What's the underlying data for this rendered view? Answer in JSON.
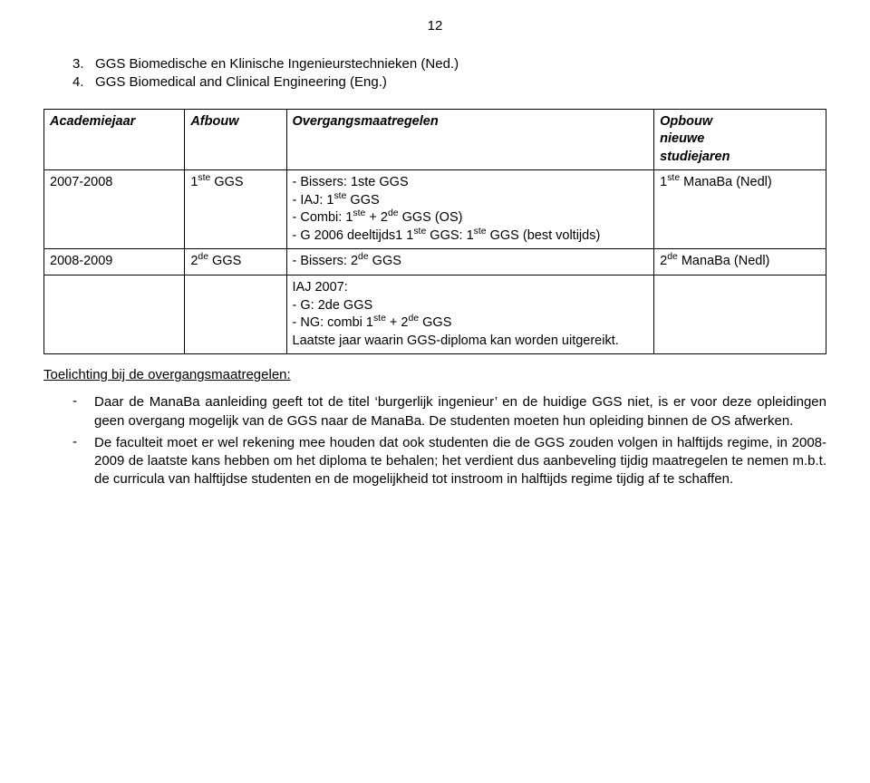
{
  "page_number": "12",
  "heading": {
    "line1_num": "3.",
    "line1_text": "GGS Biomedische en Klinische Ingenieurstechnieken (Ned.)",
    "line2_num": "4.",
    "line2_text": "GGS Biomedical and Clinical Engineering (Eng.)"
  },
  "table": {
    "headers": {
      "c1": "Academiejaar",
      "c2": "Afbouw",
      "c3": "Overgangsmaatregelen",
      "c4_a": "Opbouw",
      "c4_b": "nieuwe",
      "c4_c": "studiejaren"
    },
    "row1": {
      "year": "2007-2008",
      "afbouw_pre": "1",
      "afbouw_sup": "ste",
      "afbouw_post": " GGS",
      "ov1": "- Bissers: 1ste GGS",
      "ov2a": "- IAJ: 1",
      "ov2s": "ste",
      "ov2b": " GGS",
      "ov3a": "- Combi: 1",
      "ov3s1": "ste",
      "ov3b": " + 2",
      "ov3s2": "de",
      "ov3c": " GGS (OS)",
      "ov4a": "- G 2006 deeltijds1 1",
      "ov4s1": "ste",
      "ov4b": " GGS: 1",
      "ov4s2": "ste",
      "ov4c": " GGS (best voltijds)",
      "op_a": "1",
      "op_s": "ste",
      "op_b": " ManaBa (Nedl)"
    },
    "row2": {
      "year": "2008-2009",
      "afbouw_pre": "2",
      "afbouw_sup": "de",
      "afbouw_post": " GGS",
      "ov_a": "- Bissers: 2",
      "ov_s": "de",
      "ov_b": " GGS",
      "op_a": "2",
      "op_s": "de",
      "op_b": " ManaBa (Nedl)"
    },
    "row3": {
      "ov1": "IAJ 2007:",
      "ov2": "- G: 2de GGS",
      "ov3a": "- NG: combi 1",
      "ov3s1": "ste",
      "ov3b": " + 2",
      "ov3s2": "de",
      "ov3c": " GGS",
      "ov4": "Laatste jaar waarin GGS-diploma kan worden uitgereikt."
    }
  },
  "sub_title": "Toelichting bij de overgangsmaatregelen:",
  "bullets": {
    "b1": "Daar de ManaBa aanleiding geeft tot de titel ‘burgerlijk ingenieur’ en de huidige GGS niet, is er voor deze opleidingen geen overgang mogelijk van de GGS naar de ManaBa. De studenten moeten hun opleiding binnen de OS afwerken.",
    "b2": "De faculteit moet er wel rekening mee houden dat ook studenten die de GGS zouden volgen in halftijds regime, in 2008-2009 de laatste kans hebben om het diploma te behalen; het verdient dus aanbeveling tijdig maatregelen te nemen m.b.t. de curricula van halftijdse studenten en de mogelijkheid tot instroom in halftijds regime tijdig af te schaffen."
  }
}
